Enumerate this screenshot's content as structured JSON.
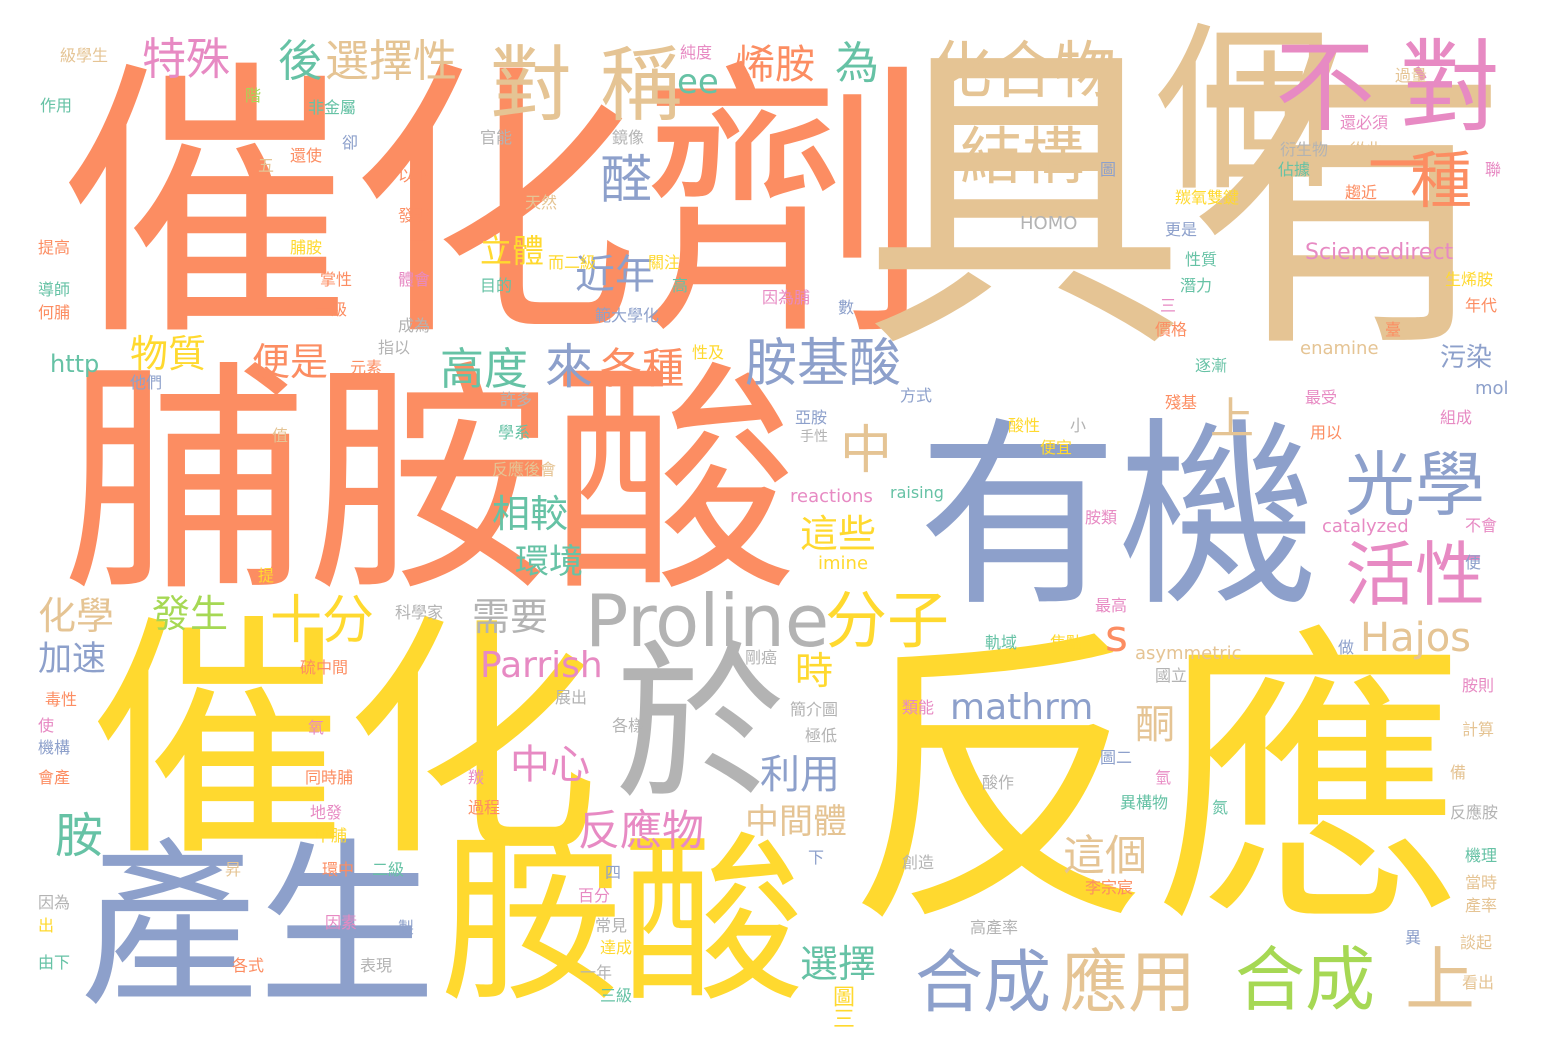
{
  "palette": {
    "orange": "#FC8D62",
    "yellow": "#FFD92F",
    "tan": "#E5C494",
    "blue": "#8DA0CB",
    "gray": "#B3B3B3",
    "pink": "#E78AC3",
    "green": "#66C2A5",
    "lime": "#A6D854"
  },
  "words": [
    {
      "id": "w01",
      "text": "催化劑",
      "color": "orange"
    },
    {
      "id": "w02",
      "text": "具有",
      "color": "tan"
    },
    {
      "id": "w03",
      "text": "脯胺酸",
      "color": "orange"
    },
    {
      "id": "w04",
      "text": "催化",
      "color": "yellow"
    },
    {
      "id": "w05",
      "text": "反應",
      "color": "yellow"
    },
    {
      "id": "w06",
      "text": "有機",
      "color": "blue"
    },
    {
      "id": "w07",
      "text": "於",
      "color": "gray"
    },
    {
      "id": "w08",
      "text": "產生",
      "color": "blue"
    },
    {
      "id": "w09",
      "text": "胺酸",
      "color": "yellow"
    },
    {
      "id": "w10",
      "text": "個",
      "color": "tan"
    },
    {
      "id": "w11",
      "text": "Proline",
      "color": "gray"
    },
    {
      "id": "w12",
      "text": "不",
      "color": "pink"
    },
    {
      "id": "w13",
      "text": "對",
      "color": "pink"
    },
    {
      "id": "w14",
      "text": "對",
      "color": "tan"
    },
    {
      "id": "w15",
      "text": "稱",
      "color": "tan"
    },
    {
      "id": "w16",
      "text": "化合物",
      "color": "tan"
    },
    {
      "id": "w17",
      "text": "結構",
      "color": "tan"
    },
    {
      "id": "w18",
      "text": "一",
      "color": "orange"
    },
    {
      "id": "w19",
      "text": "種",
      "color": "orange"
    },
    {
      "id": "w20",
      "text": "光學",
      "color": "blue"
    },
    {
      "id": "w21",
      "text": "活性",
      "color": "pink"
    },
    {
      "id": "w22",
      "text": "合成",
      "color": "blue"
    },
    {
      "id": "w23",
      "text": "應用",
      "color": "tan"
    },
    {
      "id": "w24",
      "text": "合成",
      "color": "lime"
    },
    {
      "id": "w25",
      "text": "上",
      "color": "tan"
    },
    {
      "id": "w26",
      "text": "十分",
      "color": "yellow"
    },
    {
      "id": "w27",
      "text": "分子",
      "color": "yellow"
    },
    {
      "id": "w28",
      "text": "中",
      "color": "tan"
    },
    {
      "id": "w29",
      "text": "胺基酸",
      "color": "blue"
    },
    {
      "id": "w30",
      "text": "來",
      "color": "blue"
    },
    {
      "id": "w31",
      "text": "各種",
      "color": "orange"
    },
    {
      "id": "w32",
      "text": "高度",
      "color": "green"
    },
    {
      "id": "w33",
      "text": "醛",
      "color": "blue"
    },
    {
      "id": "w34",
      "text": "近年",
      "color": "blue"
    },
    {
      "id": "w35",
      "text": "立體",
      "color": "yellow"
    },
    {
      "id": "w36",
      "text": "特殊",
      "color": "pink"
    },
    {
      "id": "w37",
      "text": "後",
      "color": "green"
    },
    {
      "id": "w38",
      "text": "選擇性",
      "color": "tan"
    },
    {
      "id": "w39",
      "text": "烯胺",
      "color": "orange"
    },
    {
      "id": "w40",
      "text": "為",
      "color": "green"
    },
    {
      "id": "w41",
      "text": "ee",
      "color": "green"
    },
    {
      "id": "w42",
      "text": "物質",
      "color": "yellow"
    },
    {
      "id": "w43",
      "text": "便是",
      "color": "orange"
    },
    {
      "id": "w44",
      "text": "上",
      "color": "tan"
    },
    {
      "id": "w45",
      "text": "相較",
      "color": "green"
    },
    {
      "id": "w46",
      "text": "環境",
      "color": "green"
    },
    {
      "id": "w47",
      "text": "這些",
      "color": "yellow"
    },
    {
      "id": "w48",
      "text": "s",
      "color": "orange"
    },
    {
      "id": "w49",
      "text": "Hajos",
      "color": "tan"
    },
    {
      "id": "w50",
      "text": "化學",
      "color": "tan"
    },
    {
      "id": "w51",
      "text": "發生",
      "color": "lime"
    },
    {
      "id": "w52",
      "text": "需要",
      "color": "gray"
    },
    {
      "id": "w53",
      "text": "加速",
      "color": "blue"
    },
    {
      "id": "w54",
      "text": "Parrish",
      "color": "pink"
    },
    {
      "id": "w55",
      "text": "時",
      "color": "yellow"
    },
    {
      "id": "w56",
      "text": "mathrm",
      "color": "blue"
    },
    {
      "id": "w57",
      "text": "酮",
      "color": "tan"
    },
    {
      "id": "w58",
      "text": "中心",
      "color": "pink"
    },
    {
      "id": "w59",
      "text": "利用",
      "color": "blue"
    },
    {
      "id": "w60",
      "text": "反應物",
      "color": "pink"
    },
    {
      "id": "w61",
      "text": "中間體",
      "color": "tan"
    },
    {
      "id": "w62",
      "text": "這個",
      "color": "tan"
    },
    {
      "id": "w63",
      "text": "胺",
      "color": "green"
    },
    {
      "id": "w64",
      "text": "選擇",
      "color": "green"
    },
    {
      "id": "w65",
      "text": "圖三",
      "color": "yellow"
    },
    {
      "id": "w66",
      "text": "Sciencedirect",
      "color": "pink"
    },
    {
      "id": "w67",
      "text": "asymmetric",
      "color": "tan"
    },
    {
      "id": "w68",
      "text": "enamine",
      "color": "tan"
    },
    {
      "id": "w69",
      "text": "HOMO",
      "color": "gray"
    },
    {
      "id": "w70",
      "text": "catalyzed",
      "color": "pink"
    },
    {
      "id": "w71",
      "text": "reactions",
      "color": "pink"
    },
    {
      "id": "w72",
      "text": "raising",
      "color": "green"
    },
    {
      "id": "w73",
      "text": "imine",
      "color": "yellow"
    },
    {
      "id": "w74",
      "text": "http",
      "color": "green"
    },
    {
      "id": "w75",
      "text": "mol",
      "color": "blue"
    },
    {
      "id": "w76",
      "text": "污染",
      "color": "blue"
    },
    {
      "id": "w77",
      "text": "級學生",
      "color": "tan"
    },
    {
      "id": "w78",
      "text": "作用",
      "color": "green"
    },
    {
      "id": "w79",
      "text": "純度",
      "color": "pink"
    },
    {
      "id": "w80",
      "text": "非金屬",
      "color": "green"
    },
    {
      "id": "w81",
      "text": "以下",
      "color": "orange"
    },
    {
      "id": "w82",
      "text": "天然",
      "color": "tan"
    },
    {
      "id": "w83",
      "text": "發現",
      "color": "orange"
    },
    {
      "id": "w84",
      "text": "而二級",
      "color": "yellow"
    },
    {
      "id": "w85",
      "text": "關注",
      "color": "yellow"
    },
    {
      "id": "w86",
      "text": "目的",
      "color": "green"
    },
    {
      "id": "w87",
      "text": "範大學化",
      "color": "blue"
    },
    {
      "id": "w88",
      "text": "因為脯",
      "color": "pink"
    },
    {
      "id": "w89",
      "text": "衍生物",
      "color": "gray"
    },
    {
      "id": "w90",
      "text": "從此",
      "color": "tan"
    },
    {
      "id": "w91",
      "text": "還必須",
      "color": "pink"
    },
    {
      "id": "w92",
      "text": "過量",
      "color": "tan"
    },
    {
      "id": "w93",
      "text": "羰氧雙鍵",
      "color": "yellow"
    },
    {
      "id": "w94",
      "text": "趨近",
      "color": "orange"
    },
    {
      "id": "w95",
      "text": "更是",
      "color": "blue"
    },
    {
      "id": "w96",
      "text": "性質",
      "color": "green"
    },
    {
      "id": "w97",
      "text": "潛力",
      "color": "green"
    },
    {
      "id": "w98",
      "text": "價格",
      "color": "orange"
    },
    {
      "id": "w99",
      "text": "逐漸",
      "color": "green"
    },
    {
      "id": "w100",
      "text": "殘基",
      "color": "orange"
    },
    {
      "id": "w101",
      "text": "最受",
      "color": "pink"
    },
    {
      "id": "w102",
      "text": "組成",
      "color": "pink"
    },
    {
      "id": "w103",
      "text": "年代",
      "color": "orange"
    },
    {
      "id": "w104",
      "text": "用以",
      "color": "orange"
    },
    {
      "id": "w105",
      "text": "提高",
      "color": "orange"
    },
    {
      "id": "w106",
      "text": "脯胺",
      "color": "yellow"
    },
    {
      "id": "w107",
      "text": "掌性",
      "color": "orange"
    },
    {
      "id": "w108",
      "text": "一級",
      "color": "orange"
    },
    {
      "id": "w109",
      "text": "成為",
      "color": "gray"
    },
    {
      "id": "w110",
      "text": "指以",
      "color": "gray"
    },
    {
      "id": "w111",
      "text": "元素",
      "color": "orange"
    },
    {
      "id": "w112",
      "text": "他們",
      "color": "blue"
    },
    {
      "id": "w113",
      "text": "許多",
      "color": "gray"
    },
    {
      "id": "w114",
      "text": "學系",
      "color": "green"
    },
    {
      "id": "w115",
      "text": "反應後會",
      "color": "tan"
    },
    {
      "id": "w116",
      "text": "方式",
      "color": "blue"
    },
    {
      "id": "w117",
      "text": "亞胺",
      "color": "blue"
    },
    {
      "id": "w118",
      "text": "手性",
      "color": "gray"
    },
    {
      "id": "w119",
      "text": "酸性",
      "color": "yellow"
    },
    {
      "id": "w120",
      "text": "便宜",
      "color": "yellow"
    },
    {
      "id": "w121",
      "text": "小",
      "color": "gray"
    },
    {
      "id": "w122",
      "text": "胺類",
      "color": "pink"
    },
    {
      "id": "w123",
      "text": "不會",
      "color": "pink"
    },
    {
      "id": "w124",
      "text": "最高",
      "color": "pink"
    },
    {
      "id": "w125",
      "text": "軌域",
      "color": "green"
    },
    {
      "id": "w126",
      "text": "焦點",
      "color": "yellow"
    },
    {
      "id": "w127",
      "text": "國立",
      "color": "gray"
    },
    {
      "id": "w128",
      "text": "胺則",
      "color": "pink"
    },
    {
      "id": "w129",
      "text": "計算",
      "color": "tan"
    },
    {
      "id": "w130",
      "text": "反應胺",
      "color": "gray"
    },
    {
      "id": "w131",
      "text": "機理",
      "color": "green"
    },
    {
      "id": "w132",
      "text": "當時",
      "color": "tan"
    },
    {
      "id": "w133",
      "text": "產率",
      "color": "tan"
    },
    {
      "id": "w134",
      "text": "談起",
      "color": "tan"
    },
    {
      "id": "w135",
      "text": "看出",
      "color": "tan"
    },
    {
      "id": "w136",
      "text": "毒性",
      "color": "orange"
    },
    {
      "id": "w137",
      "text": "機構",
      "color": "blue"
    },
    {
      "id": "w138",
      "text": "會產",
      "color": "orange"
    },
    {
      "id": "w139",
      "text": "因為",
      "color": "gray"
    },
    {
      "id": "w140",
      "text": "由下",
      "color": "green"
    },
    {
      "id": "w141",
      "text": "各式",
      "color": "orange"
    },
    {
      "id": "w142",
      "text": "表現",
      "color": "gray"
    },
    {
      "id": "w143",
      "text": "因素",
      "color": "pink"
    },
    {
      "id": "w144",
      "text": "環中",
      "color": "orange"
    },
    {
      "id": "w145",
      "text": "二級",
      "color": "green"
    },
    {
      "id": "w146",
      "text": "中脯",
      "color": "yellow"
    },
    {
      "id": "w147",
      "text": "地發",
      "color": "pink"
    },
    {
      "id": "w148",
      "text": "同時脯",
      "color": "orange"
    },
    {
      "id": "w149",
      "text": "硫中間",
      "color": "orange"
    },
    {
      "id": "w150",
      "text": "剛癌",
      "color": "gray"
    },
    {
      "id": "w151",
      "text": "簡介圖",
      "color": "gray"
    },
    {
      "id": "w152",
      "text": "極低",
      "color": "gray"
    },
    {
      "id": "w153",
      "text": "類能",
      "color": "pink"
    },
    {
      "id": "w154",
      "text": "圖二",
      "color": "blue"
    },
    {
      "id": "w155",
      "text": "酸作",
      "color": "gray"
    },
    {
      "id": "w156",
      "text": "異構物",
      "color": "green"
    },
    {
      "id": "w157",
      "text": "創造",
      "color": "gray"
    },
    {
      "id": "w158",
      "text": "李宗宸",
      "color": "orange"
    },
    {
      "id": "w159",
      "text": "高產率",
      "color": "gray"
    },
    {
      "id": "w160",
      "text": "過程",
      "color": "orange"
    },
    {
      "id": "w161",
      "text": "常見",
      "color": "gray"
    },
    {
      "id": "w162",
      "text": "達成",
      "color": "yellow"
    },
    {
      "id": "w163",
      "text": "一年",
      "color": "gray"
    },
    {
      "id": "w164",
      "text": "三級",
      "color": "green"
    },
    {
      "id": "w165",
      "text": "百分",
      "color": "pink"
    },
    {
      "id": "w166",
      "text": "展出",
      "color": "gray"
    },
    {
      "id": "w167",
      "text": "各樣",
      "color": "gray"
    },
    {
      "id": "w168",
      "text": "官能",
      "color": "gray"
    },
    {
      "id": "w169",
      "text": "鏡像",
      "color": "gray"
    },
    {
      "id": "w170",
      "text": "還使",
      "color": "orange"
    },
    {
      "id": "w171",
      "text": "值",
      "color": "tan"
    },
    {
      "id": "w172",
      "text": "數",
      "color": "blue"
    },
    {
      "id": "w173",
      "text": "使",
      "color": "pink"
    },
    {
      "id": "w174",
      "text": "氧",
      "color": "pink"
    },
    {
      "id": "w175",
      "text": "羰",
      "color": "pink"
    },
    {
      "id": "w176",
      "text": "氫",
      "color": "pink"
    },
    {
      "id": "w177",
      "text": "氮",
      "color": "green"
    },
    {
      "id": "w178",
      "text": "異",
      "color": "blue"
    },
    {
      "id": "w179",
      "text": "四",
      "color": "blue"
    },
    {
      "id": "w180",
      "text": "製",
      "color": "blue"
    },
    {
      "id": "w181",
      "text": "下",
      "color": "blue"
    },
    {
      "id": "w182",
      "text": "做",
      "color": "blue"
    },
    {
      "id": "w183",
      "text": "備",
      "color": "tan"
    },
    {
      "id": "w184",
      "text": "圖",
      "color": "blue"
    },
    {
      "id": "w185",
      "text": "三",
      "color": "pink"
    },
    {
      "id": "w186",
      "text": "臺",
      "color": "orange"
    },
    {
      "id": "w187",
      "text": "便",
      "color": "blue"
    },
    {
      "id": "w188",
      "text": "聯",
      "color": "pink"
    },
    {
      "id": "w189",
      "text": "五",
      "color": "tan"
    },
    {
      "id": "w190",
      "text": "卻",
      "color": "blue"
    },
    {
      "id": "w191",
      "text": "階",
      "color": "lime"
    },
    {
      "id": "w192",
      "text": "二",
      "color": "orange"
    },
    {
      "id": "w193",
      "text": "高",
      "color": "green"
    },
    {
      "id": "w194",
      "text": "提",
      "color": "yellow"
    },
    {
      "id": "w195",
      "text": "昇",
      "color": "tan"
    },
    {
      "id": "w196",
      "text": "出",
      "color": "yellow"
    },
    {
      "id": "w197",
      "text": "體會",
      "color": "pink"
    },
    {
      "id": "w198",
      "text": "性及",
      "color": "yellow"
    },
    {
      "id": "w199",
      "text": "導師",
      "color": "green"
    },
    {
      "id": "w200",
      "text": "何脯",
      "color": "orange"
    },
    {
      "id": "w201",
      "text": "科學家",
      "color": "gray"
    },
    {
      "id": "w202",
      "text": "佔據",
      "color": "green"
    },
    {
      "id": "w203",
      "text": "生烯胺",
      "color": "yellow"
    }
  ]
}
